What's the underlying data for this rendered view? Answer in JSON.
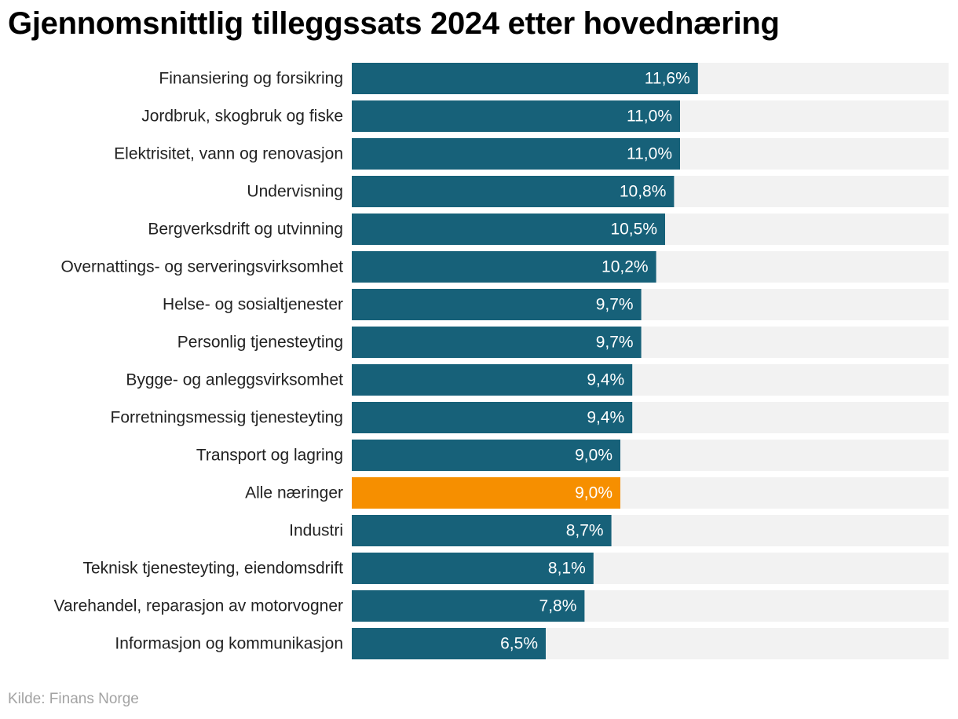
{
  "title": "Gjennomsnittlig tilleggssats 2024 etter hovednæring",
  "source": "Kilde: Finans Norge",
  "colors": {
    "bar": "#176179",
    "highlight": "#f68f00",
    "track": "#f2f2f2",
    "label": "#222222",
    "value_text": "#ffffff"
  },
  "chart_data": {
    "type": "bar",
    "orientation": "horizontal",
    "title": "Gjennomsnittlig tilleggssats 2024 etter hovednæring",
    "xlabel": "",
    "ylabel": "",
    "xlim": [
      0,
      20
    ],
    "grid": false,
    "categories": [
      "Finansiering og forsikring",
      "Jordbruk, skogbruk og fiske",
      "Elektrisitet, vann og renovasjon",
      "Undervisning",
      "Bergverksdrift og utvinning",
      "Overnattings- og serveringsvirksomhet",
      "Helse- og sosialtjenester",
      "Personlig tjenesteyting",
      "Bygge- og anleggsvirksomhet",
      "Forretningsmessig tjenesteyting",
      "Transport og lagring",
      "Alle næringer",
      "Industri",
      "Teknisk tjenesteyting, eiendomsdrift",
      "Varehandel, reparasjon av motorvogner",
      "Informasjon og kommunikasjon"
    ],
    "values": [
      11.6,
      11.0,
      11.0,
      10.8,
      10.5,
      10.2,
      9.7,
      9.7,
      9.4,
      9.4,
      9.0,
      9.0,
      8.7,
      8.1,
      7.8,
      6.5
    ],
    "value_labels": [
      "11,6%",
      "11,0%",
      "11,0%",
      "10,8%",
      "10,5%",
      "10,2%",
      "9,7%",
      "9,7%",
      "9,4%",
      "9,4%",
      "9,0%",
      "9,0%",
      "8,7%",
      "8,1%",
      "7,8%",
      "6,5%"
    ],
    "highlight_category": "Alle næringer"
  }
}
